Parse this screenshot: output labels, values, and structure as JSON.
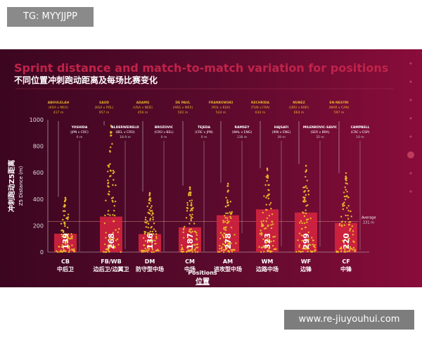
{
  "page": {
    "badge": "TG: MYYJJPP",
    "site": "www.re-jiuyouhui.com"
  },
  "colors": {
    "bar": "#d4243f",
    "dot": "#e8b52a",
    "title": "#c0234a",
    "label": "#e8b52a"
  },
  "chart_data": {
    "type": "bar",
    "title": "Sprint distance and match-to-match variation for positions",
    "subtitle": "不同位置冲刺跑动距离及每场比赛变化",
    "ylabel": "冲刺跑动Z5距离",
    "ylabel_en": "Z5 Distance (m)",
    "xlabel": "Positions",
    "xlabel_cn": "位置",
    "ylim": [
      0,
      1000
    ],
    "yticks": [
      "0",
      "200",
      "400",
      "600",
      "800",
      "1000"
    ],
    "average": {
      "label": "Average",
      "value_label": "231 m",
      "value": 231
    },
    "categories": [
      {
        "code": "CB",
        "cn": "中后卫"
      },
      {
        "code": "FB/WB",
        "cn": "边后卫/边翼卫"
      },
      {
        "code": "DM",
        "cn": "防守型中场"
      },
      {
        "code": "CM",
        "cn": "中场"
      },
      {
        "code": "AM",
        "cn": "进攻型中场"
      },
      {
        "code": "WM",
        "cn": "边路中场"
      },
      {
        "code": "WF",
        "cn": "边锋"
      },
      {
        "code": "CF",
        "cn": "中锋"
      }
    ],
    "values": [
      139,
      268,
      136,
      187,
      278,
      323,
      299,
      220
    ],
    "value_labels": [
      "139",
      "268",
      "136",
      "187",
      "278",
      "323",
      "299",
      "220"
    ],
    "max_annotations": [
      {
        "name": "ABOULELAH",
        "match": "(KSA v MEX)",
        "dist": "417 m",
        "value": 417
      },
      {
        "name": "SAUD",
        "match": "(KSA v POL)",
        "dist": "957 m",
        "value": 957
      },
      {
        "name": "ADAMS",
        "match": "(USA v NED)",
        "dist": "456 m",
        "value": 456
      },
      {
        "name": "DE PAUL",
        "match": "(ARG v MEX)",
        "dist": "502 m",
        "value": 502
      },
      {
        "name": "FRANKOWSKI",
        "match": "(POL v KSA)",
        "dist": "524 m",
        "value": 524
      },
      {
        "name": "KECHRIDA",
        "match": "(TUN v FRA)",
        "dist": "634 m",
        "value": 634
      },
      {
        "name": "NUNEZ",
        "match": "(URU v KOR)",
        "dist": "664 m",
        "value": 664
      },
      {
        "name": "EN-NESYRI",
        "match": "(MAR v CAN)",
        "dist": "597 m",
        "value": 597
      }
    ],
    "min_annotations": [
      {
        "name": "YOSHIDA",
        "match": "(JPN v CRC)",
        "dist": "0 m",
        "value": 0
      },
      {
        "name": "ALDERWEIRELD",
        "match": "(BEL v CRO)",
        "dist": "18.9 m",
        "value": 18.9
      },
      {
        "name": "BROZOVIC",
        "match": "(CRO v BEL)",
        "dist": "0 m",
        "value": 0
      },
      {
        "name": "TEJEDA",
        "match": "(CRC v JPN)",
        "dist": "0 m",
        "value": 0
      },
      {
        "name": "RAMSEY",
        "match": "(WAL v ENG)",
        "dist": "138 m",
        "value": 138
      },
      {
        "name": "HAJSAFI",
        "match": "(IRN v ENG)",
        "dist": "39 m",
        "value": 39
      },
      {
        "name": "MILENKOVIC-SAVIC",
        "match": "(SER v BRA)",
        "dist": "35 m",
        "value": 35
      },
      {
        "name": "CAMPBELL",
        "match": "(CRC v ESP)",
        "dist": "10 m",
        "value": 10
      }
    ]
  }
}
